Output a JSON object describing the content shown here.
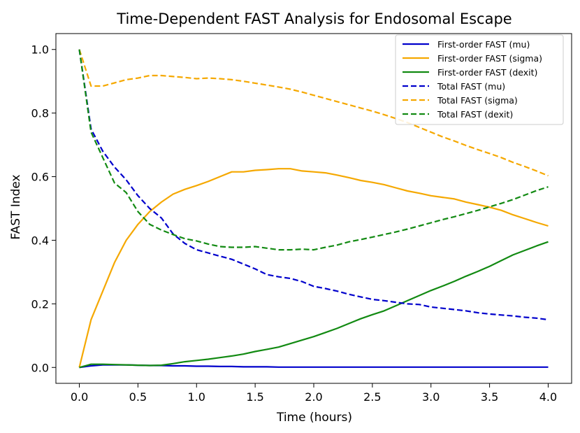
{
  "chart_data": {
    "type": "line",
    "title": "Time-Dependent FAST Analysis for Endosomal Escape",
    "xlabel": "Time (hours)",
    "ylabel": "FAST Index",
    "xlim": [
      -0.2,
      4.2
    ],
    "ylim": [
      -0.05,
      1.05
    ],
    "xticks": [
      0.0,
      0.5,
      1.0,
      1.5,
      2.0,
      2.5,
      3.0,
      3.5,
      4.0
    ],
    "xtick_labels": [
      "0.0",
      "0.5",
      "1.0",
      "1.5",
      "2.0",
      "2.5",
      "3.0",
      "3.5",
      "4.0"
    ],
    "yticks": [
      0.0,
      0.2,
      0.4,
      0.6,
      0.8,
      1.0
    ],
    "ytick_labels": [
      "0.0",
      "0.2",
      "0.4",
      "0.6",
      "0.8",
      "1.0"
    ],
    "grid": false,
    "legend_position": "top-right",
    "x": [
      0.0,
      0.1,
      0.2,
      0.3,
      0.4,
      0.5,
      0.6,
      0.7,
      0.8,
      0.9,
      1.0,
      1.1,
      1.2,
      1.3,
      1.4,
      1.5,
      1.6,
      1.7,
      1.8,
      1.9,
      2.0,
      2.1,
      2.2,
      2.3,
      2.4,
      2.5,
      2.6,
      2.7,
      2.8,
      2.9,
      3.0,
      3.1,
      3.2,
      3.3,
      3.4,
      3.5,
      3.6,
      3.7,
      3.8,
      3.9,
      4.0
    ],
    "series": [
      {
        "name": "First-order FAST (mu)",
        "color": "#0000cc",
        "style": "solid",
        "values": [
          0.0,
          0.005,
          0.008,
          0.008,
          0.008,
          0.007,
          0.006,
          0.006,
          0.005,
          0.005,
          0.004,
          0.004,
          0.003,
          0.003,
          0.002,
          0.002,
          0.002,
          0.001,
          0.001,
          0.001,
          0.001,
          0.001,
          0.001,
          0.001,
          0.001,
          0.001,
          0.001,
          0.001,
          0.001,
          0.001,
          0.001,
          0.001,
          0.001,
          0.001,
          0.001,
          0.001,
          0.001,
          0.001,
          0.001,
          0.001,
          0.001
        ]
      },
      {
        "name": "First-order FAST (sigma)",
        "color": "#f5a800",
        "style": "solid",
        "values": [
          0.0,
          0.15,
          0.24,
          0.33,
          0.4,
          0.45,
          0.49,
          0.52,
          0.545,
          0.56,
          0.572,
          0.585,
          0.6,
          0.615,
          0.615,
          0.62,
          0.622,
          0.625,
          0.625,
          0.618,
          0.615,
          0.612,
          0.605,
          0.597,
          0.588,
          0.582,
          0.575,
          0.565,
          0.555,
          0.548,
          0.54,
          0.535,
          0.53,
          0.52,
          0.512,
          0.504,
          0.494,
          0.48,
          0.468,
          0.456,
          0.445
        ]
      },
      {
        "name": "First-order FAST (dexit)",
        "color": "#128a12",
        "style": "solid",
        "values": [
          0.0,
          0.01,
          0.01,
          0.009,
          0.008,
          0.007,
          0.006,
          0.007,
          0.012,
          0.018,
          0.022,
          0.026,
          0.031,
          0.036,
          0.042,
          0.05,
          0.057,
          0.064,
          0.075,
          0.086,
          0.097,
          0.11,
          0.123,
          0.138,
          0.153,
          0.166,
          0.178,
          0.194,
          0.21,
          0.226,
          0.242,
          0.256,
          0.271,
          0.287,
          0.302,
          0.318,
          0.336,
          0.354,
          0.368,
          0.382,
          0.395
        ]
      },
      {
        "name": "Total FAST (mu)",
        "color": "#0000cc",
        "style": "dashed",
        "values": [
          1.0,
          0.75,
          0.68,
          0.63,
          0.59,
          0.54,
          0.5,
          0.47,
          0.42,
          0.39,
          0.37,
          0.36,
          0.35,
          0.34,
          0.325,
          0.31,
          0.292,
          0.285,
          0.28,
          0.27,
          0.255,
          0.248,
          0.24,
          0.23,
          0.222,
          0.214,
          0.21,
          0.205,
          0.2,
          0.198,
          0.19,
          0.186,
          0.182,
          0.178,
          0.172,
          0.168,
          0.165,
          0.162,
          0.158,
          0.155,
          0.15
        ]
      },
      {
        "name": "Total FAST (sigma)",
        "color": "#f5a800",
        "style": "dashed",
        "values": [
          1.0,
          0.885,
          0.885,
          0.895,
          0.905,
          0.91,
          0.918,
          0.918,
          0.915,
          0.912,
          0.908,
          0.91,
          0.908,
          0.905,
          0.9,
          0.894,
          0.888,
          0.882,
          0.875,
          0.866,
          0.856,
          0.846,
          0.836,
          0.826,
          0.816,
          0.806,
          0.795,
          0.783,
          0.77,
          0.755,
          0.74,
          0.725,
          0.712,
          0.698,
          0.685,
          0.673,
          0.66,
          0.645,
          0.632,
          0.618,
          0.603
        ]
      },
      {
        "name": "Total FAST (dexit)",
        "color": "#128a12",
        "style": "dashed",
        "values": [
          1.0,
          0.74,
          0.66,
          0.58,
          0.55,
          0.49,
          0.45,
          0.432,
          0.418,
          0.405,
          0.398,
          0.388,
          0.38,
          0.378,
          0.378,
          0.38,
          0.375,
          0.37,
          0.37,
          0.372,
          0.37,
          0.378,
          0.385,
          0.395,
          0.402,
          0.41,
          0.418,
          0.426,
          0.435,
          0.445,
          0.455,
          0.465,
          0.474,
          0.484,
          0.494,
          0.505,
          0.516,
          0.528,
          0.542,
          0.556,
          0.568
        ]
      }
    ]
  }
}
